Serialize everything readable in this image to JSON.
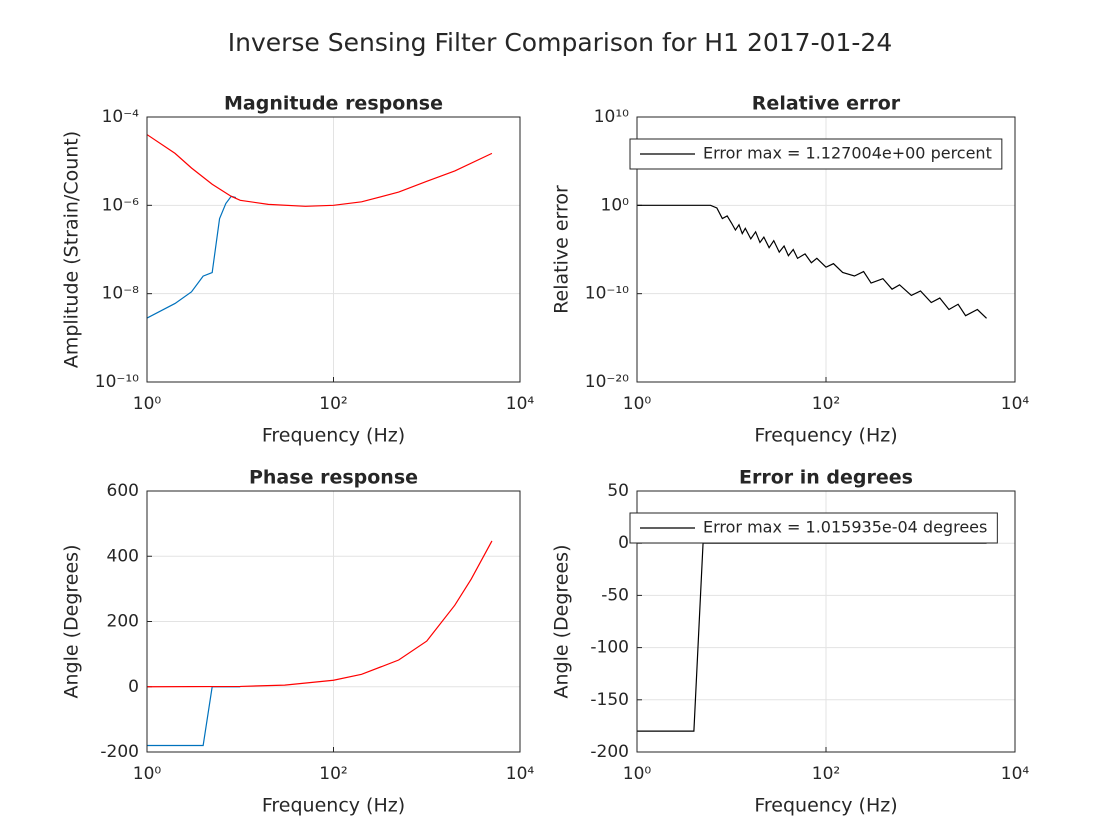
{
  "title": "Inverse Sensing Filter Comparison for H1 2017-01-24",
  "chart_data": [
    {
      "type": "line",
      "title": "Magnitude response",
      "xlabel": "Frequency (Hz)",
      "ylabel": "Amplitude (Strain/Count)",
      "xscale": "log",
      "yscale": "log",
      "grid": true,
      "xlim": [
        1,
        10000
      ],
      "ylim": [
        1e-10,
        0.0001
      ],
      "xticks": [
        {
          "value": 1,
          "label": "10⁰"
        },
        {
          "value": 100,
          "label": "10²"
        },
        {
          "value": 10000,
          "label": "10⁴"
        }
      ],
      "yticks": [
        {
          "value": 1e-10,
          "label": "10⁻¹⁰"
        },
        {
          "value": 1e-08,
          "label": "10⁻⁸"
        },
        {
          "value": 1e-06,
          "label": "10⁻⁶"
        },
        {
          "value": 0.0001,
          "label": "10⁻⁴"
        }
      ],
      "series": [
        {
          "color": "#0072bd",
          "x": [
            1,
            2,
            3,
            4,
            5,
            6,
            7,
            8,
            9
          ],
          "values": [
            2.8e-09,
            6e-09,
            1.1e-08,
            2.5e-08,
            3e-08,
            5e-07,
            1.1e-06,
            1.6e-06,
            1.5e-06
          ]
        },
        {
          "color": "#ff0000",
          "x": [
            1,
            2,
            3,
            5,
            8,
            10,
            20,
            50,
            100,
            200,
            500,
            1000,
            2000,
            5000
          ],
          "values": [
            4e-05,
            1.5e-05,
            7e-06,
            3e-06,
            1.6e-06,
            1.3e-06,
            1.05e-06,
            9.5e-07,
            1e-06,
            1.2e-06,
            2e-06,
            3.5e-06,
            6e-06,
            1.5e-05
          ]
        }
      ]
    },
    {
      "type": "line",
      "title": "Relative error",
      "xlabel": "Frequency (Hz)",
      "ylabel": "Relative error",
      "xscale": "log",
      "yscale": "log",
      "grid": true,
      "legend": "north-west",
      "xlim": [
        1,
        10000
      ],
      "ylim": [
        1e-20,
        10000000000.0
      ],
      "xticks": [
        {
          "value": 1,
          "label": "10⁰"
        },
        {
          "value": 100,
          "label": "10²"
        },
        {
          "value": 10000,
          "label": "10⁴"
        }
      ],
      "yticks": [
        {
          "value": 1e-20,
          "label": "10⁻²⁰"
        },
        {
          "value": 1e-10,
          "label": "10⁻¹⁰"
        },
        {
          "value": 1,
          "label": "10⁰"
        },
        {
          "value": 10000000000.0,
          "label": "10¹⁰"
        }
      ],
      "series": [
        {
          "name": "Error max = 1.127004e+00 percent",
          "color": "#000000",
          "x": [
            1,
            2,
            4,
            6,
            7,
            8,
            9,
            10,
            11,
            12,
            13,
            14,
            16,
            18,
            20,
            22,
            25,
            28,
            32,
            36,
            40,
            45,
            50,
            60,
            70,
            80,
            100,
            120,
            150,
            200,
            250,
            300,
            400,
            500,
            600,
            800,
            1000,
            1300,
            1600,
            2000,
            2500,
            3000,
            4000,
            5000
          ],
          "values": [
            1,
            1,
            1,
            1,
            0.5,
            0.032,
            0.063,
            0.01,
            0.0016,
            0.0063,
            0.00063,
            0.0025,
            0.00016,
            0.001,
            6.3e-05,
            0.00025,
            1.6e-05,
            0.0001,
            5e-06,
            2.5e-05,
            2e-06,
            1e-05,
            1e-06,
            3.2e-06,
            3.2e-07,
            1e-06,
            1e-07,
            2.5e-07,
            2.5e-08,
            1e-08,
            3.2e-08,
            1.6e-09,
            5e-09,
            3.2e-10,
            1e-09,
            6.3e-11,
            2e-10,
            1e-11,
            3.2e-11,
            1.6e-12,
            6.3e-12,
            3.2e-13,
            1.6e-12,
            1.6e-13
          ]
        }
      ]
    },
    {
      "type": "line",
      "title": "Phase response",
      "xlabel": "Frequency (Hz)",
      "ylabel": "Angle (Degrees)",
      "xscale": "log",
      "yscale": "linear",
      "grid": true,
      "xlim": [
        1,
        10000
      ],
      "ylim": [
        -200,
        600
      ],
      "xticks": [
        {
          "value": 1,
          "label": "10⁰"
        },
        {
          "value": 100,
          "label": "10²"
        },
        {
          "value": 10000,
          "label": "10⁴"
        }
      ],
      "yticks": [
        -200,
        0,
        200,
        400,
        600
      ],
      "series": [
        {
          "color": "#0072bd",
          "x": [
            1,
            4,
            5,
            10
          ],
          "values": [
            -180,
            -180,
            0,
            0
          ]
        },
        {
          "color": "#ff0000",
          "x": [
            1,
            10,
            30,
            100,
            200,
            500,
            1000,
            2000,
            3000,
            5000
          ],
          "values": [
            0,
            1,
            5,
            20,
            38,
            82,
            140,
            250,
            330,
            447
          ]
        }
      ]
    },
    {
      "type": "line",
      "title": "Error in degrees",
      "xlabel": "Frequency (Hz)",
      "ylabel": "Angle (Degrees)",
      "xscale": "log",
      "yscale": "linear",
      "grid": true,
      "legend": "north-west",
      "xlim": [
        1,
        10000
      ],
      "ylim": [
        -200,
        50
      ],
      "xticks": [
        {
          "value": 1,
          "label": "10⁰"
        },
        {
          "value": 100,
          "label": "10²"
        },
        {
          "value": 10000,
          "label": "10⁴"
        }
      ],
      "yticks": [
        -200,
        -150,
        -100,
        -50,
        0,
        50
      ],
      "series": [
        {
          "name": "Error max = 1.015935e-04 degrees",
          "color": "#000000",
          "x": [
            1,
            4,
            5,
            5000
          ],
          "values": [
            -180,
            -180,
            0,
            0
          ]
        }
      ]
    }
  ]
}
